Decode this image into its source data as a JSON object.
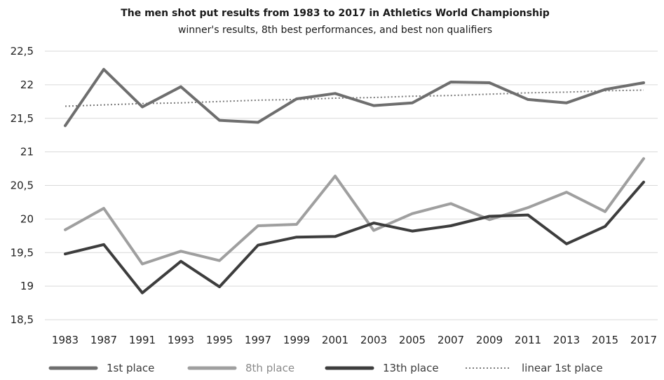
{
  "chart_data": {
    "type": "line",
    "title": "The men shot put results from 1983 to 2017 in Athletics World Championship",
    "subtitle": "winner's results,  8th best performances, and best non qualifiers",
    "xlabel": "",
    "ylabel": "",
    "categories": [
      "1983",
      "1987",
      "1991",
      "1993",
      "1995",
      "1997",
      "1999",
      "2001",
      "2003",
      "2005",
      "2007",
      "2009",
      "2011",
      "2013",
      "2015",
      "2017"
    ],
    "ylim": [
      18.5,
      22.5
    ],
    "yticks": [
      {
        "value": 18.5,
        "label": "18,5"
      },
      {
        "value": 19,
        "label": "19"
      },
      {
        "value": 19.5,
        "label": "19,5"
      },
      {
        "value": 20,
        "label": "20"
      },
      {
        "value": 20.5,
        "label": "20,5"
      },
      {
        "value": 21,
        "label": "21"
      },
      {
        "value": 21.5,
        "label": "21,5"
      },
      {
        "value": 22,
        "label": "22"
      },
      {
        "value": 22.5,
        "label": "22,5"
      }
    ],
    "grid": "horizontal",
    "legend_position": "bottom",
    "series": [
      {
        "name": "1st place",
        "color": "#6e6e6e",
        "style": "solid",
        "values": [
          21.39,
          22.23,
          21.67,
          21.97,
          21.47,
          21.44,
          21.79,
          21.87,
          21.69,
          21.73,
          22.04,
          22.03,
          21.78,
          21.73,
          21.93,
          22.03
        ]
      },
      {
        "name": "8th place",
        "color": "#9f9f9f",
        "style": "solid",
        "values": [
          19.84,
          20.16,
          19.33,
          19.52,
          19.38,
          19.9,
          19.92,
          20.64,
          19.83,
          20.08,
          20.23,
          19.99,
          20.17,
          20.4,
          20.11,
          20.9
        ]
      },
      {
        "name": "13th place",
        "color": "#3d3d3d",
        "style": "solid",
        "values": [
          19.48,
          19.62,
          18.9,
          19.37,
          18.99,
          19.61,
          19.73,
          19.74,
          19.94,
          19.82,
          19.9,
          20.04,
          20.06,
          19.63,
          19.89,
          20.55
        ]
      },
      {
        "name": "linear 1st place",
        "color": "#7a7a7a",
        "style": "dotted",
        "values": [
          21.68,
          21.7,
          21.72,
          21.73,
          21.75,
          21.77,
          21.78,
          21.8,
          21.81,
          21.83,
          21.84,
          21.86,
          21.88,
          21.89,
          21.91,
          21.92
        ]
      }
    ]
  }
}
